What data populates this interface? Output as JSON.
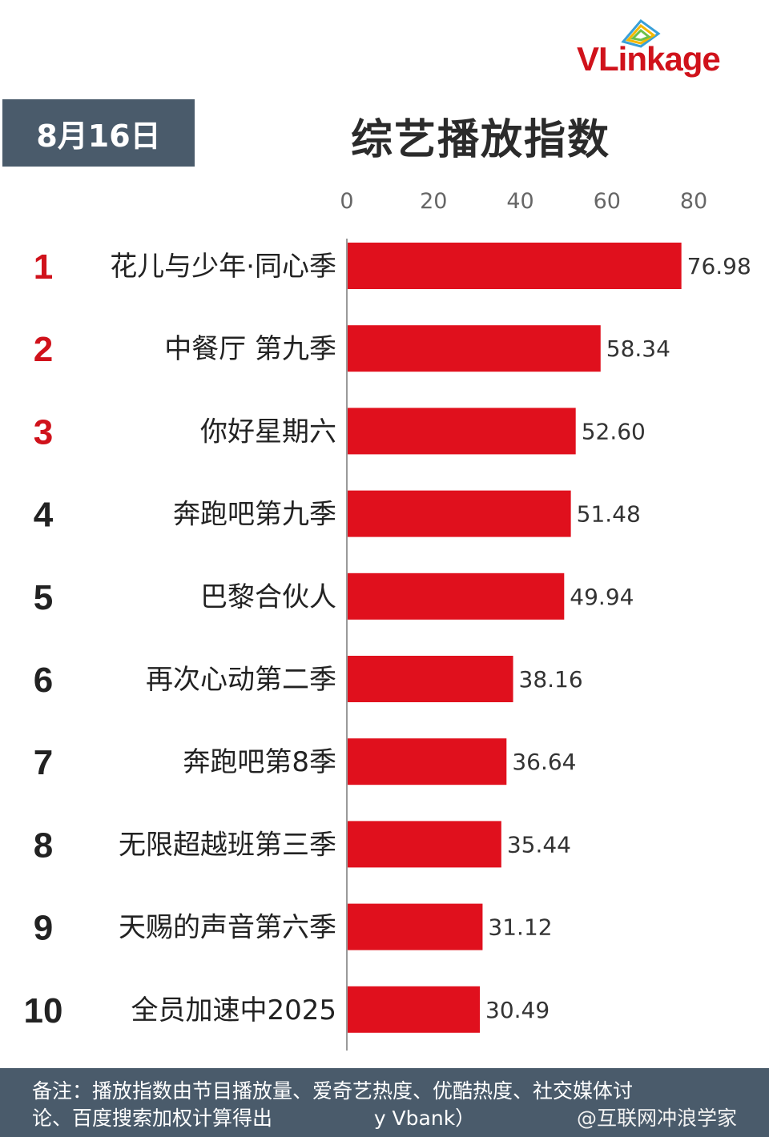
{
  "logo": {
    "text": "VLinkage"
  },
  "date_label": "8月16日",
  "footer": {
    "note_line1": "备注：播放指数由节目播放量、爱奇艺热度、优酷热度、社交媒体讨",
    "note_line2": "论、百度搜索加权计算得出",
    "source_fragment": "y Vbank）",
    "watermark": "@互联网冲浪学家"
  },
  "colors": {
    "bar": "#e0101d",
    "rank_top3": "#d0121b",
    "rank_other": "#222222",
    "panel": "#4a5b6b"
  },
  "chart_data": {
    "type": "bar",
    "orientation": "horizontal",
    "title": "综艺播放指数",
    "xlim": [
      0,
      80
    ],
    "x_ticks": [
      "0",
      "20",
      "40",
      "60",
      "80"
    ],
    "grid": false,
    "ranks": [
      "1",
      "2",
      "3",
      "4",
      "5",
      "6",
      "7",
      "8",
      "9",
      "10"
    ],
    "categories": [
      "花儿与少年·同心季",
      "中餐厅 第九季",
      "你好星期六",
      "奔跑吧第九季",
      "巴黎合伙人",
      "再次心动第二季",
      "奔跑吧第8季",
      "无限超越班第三季",
      "天赐的声音第六季",
      "全员加速中2025"
    ],
    "values": [
      76.98,
      58.34,
      52.6,
      51.48,
      49.94,
      38.16,
      36.64,
      35.44,
      31.12,
      30.49
    ],
    "value_labels": [
      "76.98",
      "58.34",
      "52.60",
      "51.48",
      "49.94",
      "38.16",
      "36.64",
      "35.44",
      "31.12",
      "30.49"
    ]
  }
}
